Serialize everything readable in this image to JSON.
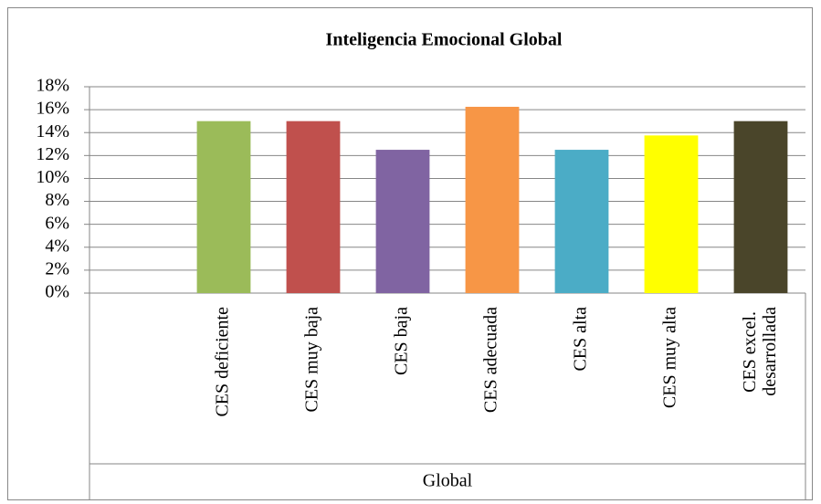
{
  "chart_data": {
    "type": "bar",
    "title": "Inteligencia Emocional Global",
    "categories": [
      null,
      "CES deficiente",
      "CES muy baja",
      "CES baja",
      "CES adecuada",
      "CES alta",
      "CES muy alta",
      "CES excel. desarrollada"
    ],
    "values": [
      null,
      15,
      15,
      12.5,
      16.25,
      12.5,
      13.75,
      15
    ],
    "colors": [
      null,
      "#9bbb59",
      "#c0504d",
      "#8064a2",
      "#f79646",
      "#4bacc6",
      "#ffff00",
      "#4a452a"
    ],
    "group_label": "Global",
    "ylim": [
      0,
      18
    ],
    "yticks": [
      {
        "value": 0,
        "label": "0%"
      },
      {
        "value": 2,
        "label": "2%"
      },
      {
        "value": 4,
        "label": "4%"
      },
      {
        "value": 6,
        "label": "6%"
      },
      {
        "value": 8,
        "label": "8%"
      },
      {
        "value": 10,
        "label": "10%"
      },
      {
        "value": 12,
        "label": "12%"
      },
      {
        "value": 14,
        "label": "14%"
      },
      {
        "value": 16,
        "label": "16%"
      },
      {
        "value": 18,
        "label": "18%"
      }
    ],
    "grid": true
  }
}
